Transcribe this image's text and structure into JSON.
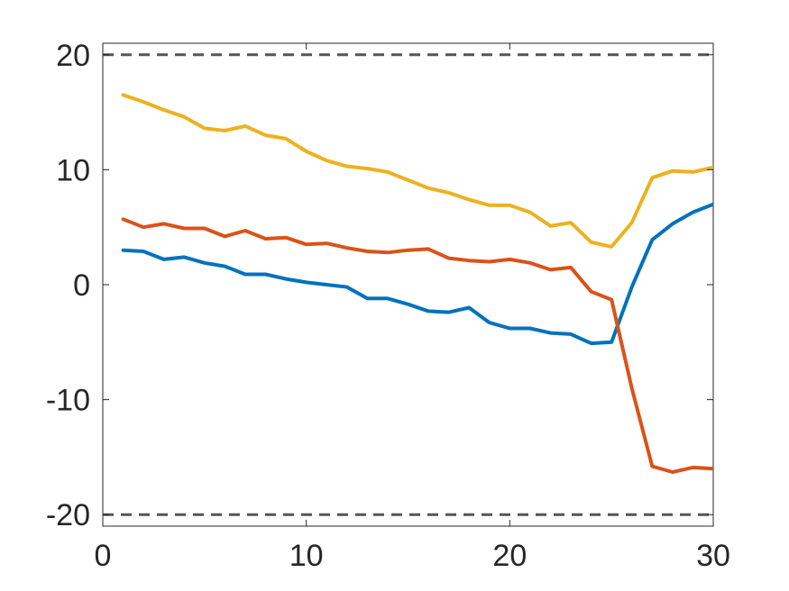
{
  "chart_data": {
    "type": "line",
    "title": "",
    "xlabel": "",
    "ylabel": "",
    "xlim": [
      0,
      30
    ],
    "ylim": [
      -21,
      21
    ],
    "x_ticks": [
      0,
      10,
      20,
      30
    ],
    "x_tick_labels": [
      "0",
      "10",
      "20",
      "30"
    ],
    "y_ticks": [
      20,
      10,
      0,
      -10,
      -20
    ],
    "y_tick_labels": [
      "20",
      "10",
      "0",
      "-10",
      "-20"
    ],
    "grid": false,
    "legend": "none",
    "reference_lines": [
      {
        "y": 20,
        "style": "dashed",
        "color": "#555555"
      },
      {
        "y": -20,
        "style": "dashed",
        "color": "#555555"
      }
    ],
    "x": [
      1,
      2,
      3,
      4,
      5,
      6,
      7,
      8,
      9,
      10,
      11,
      12,
      13,
      14,
      15,
      16,
      17,
      18,
      19,
      20,
      21,
      22,
      23,
      24,
      25,
      26,
      27,
      28,
      29,
      30
    ],
    "series": [
      {
        "color": "#0072BD",
        "values": [
          3.0,
          2.9,
          2.2,
          2.4,
          1.9,
          1.6,
          0.9,
          0.9,
          0.5,
          0.2,
          0.0,
          -0.2,
          -1.2,
          -1.2,
          -1.7,
          -2.3,
          -2.4,
          -2.0,
          -3.3,
          -3.8,
          -3.8,
          -4.2,
          -4.3,
          -5.1,
          -5.0,
          -0.2,
          3.9,
          5.3,
          6.3,
          7.0
        ]
      },
      {
        "color": "#D95319",
        "values": [
          5.7,
          5.0,
          5.3,
          4.9,
          4.9,
          4.2,
          4.7,
          4.0,
          4.1,
          3.5,
          3.6,
          3.2,
          2.9,
          2.8,
          3.0,
          3.1,
          2.3,
          2.1,
          2.0,
          2.2,
          1.9,
          1.3,
          1.5,
          -0.6,
          -1.3,
          -9.0,
          -15.8,
          -16.3,
          -15.9,
          -16.0
        ]
      },
      {
        "color": "#EDB120",
        "values": [
          16.5,
          15.9,
          15.2,
          14.6,
          13.6,
          13.4,
          13.8,
          13.0,
          12.7,
          11.6,
          10.8,
          10.3,
          10.1,
          9.8,
          9.1,
          8.4,
          8.0,
          7.4,
          6.9,
          6.9,
          6.3,
          5.1,
          5.4,
          3.7,
          3.3,
          5.4,
          9.3,
          9.9,
          9.8,
          10.2
        ]
      }
    ]
  }
}
